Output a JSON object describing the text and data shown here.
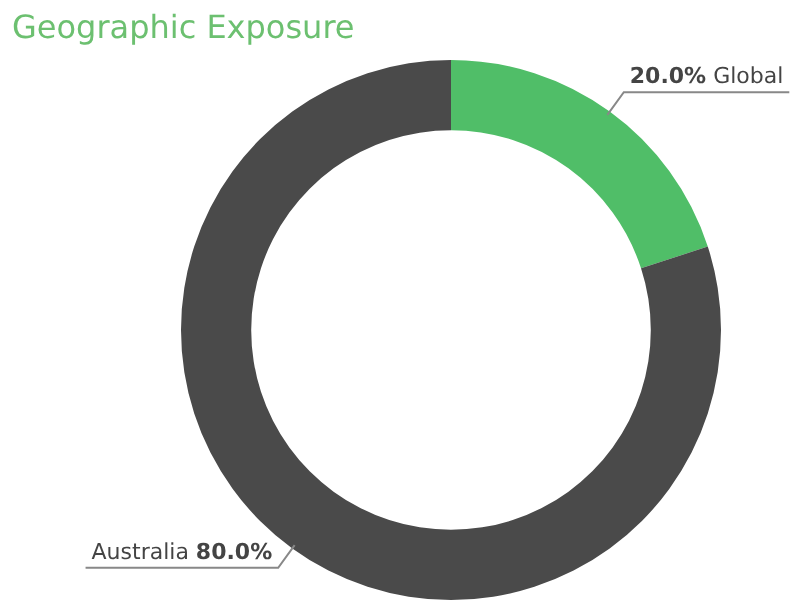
{
  "chart_data": {
    "type": "donut",
    "title": "Geographic Exposure",
    "categories": [
      "Global",
      "Australia"
    ],
    "values": [
      20,
      80
    ],
    "value_labels": [
      "20.0%",
      "80.0%"
    ],
    "colors": [
      "#50be68",
      "#4a4a4a"
    ],
    "legend": false
  }
}
